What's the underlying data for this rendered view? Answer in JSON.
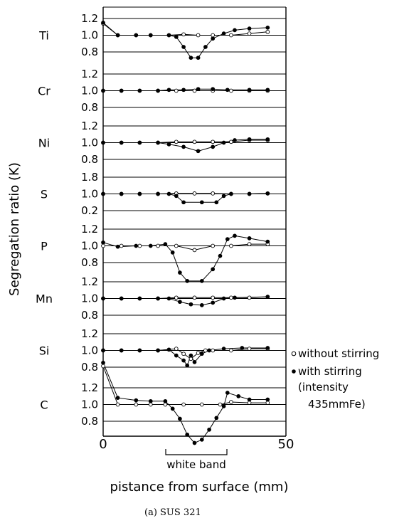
{
  "chart_data": {
    "type": "line",
    "xlabel": "pistance from surface (mm)",
    "ylabel": "Segregation ratio (K)",
    "xlim": [
      0,
      50
    ],
    "x_ticks": [
      "0",
      "50"
    ],
    "caption": "(a)  SUS 321",
    "band_label": "white band",
    "band_range": [
      17.5,
      35
    ],
    "legend": {
      "open": "without stirring",
      "filled": "with stirring",
      "filled_extra_1": "(intensity",
      "filled_extra_2": "435mmFe)"
    },
    "panels": [
      {
        "element": "Ti",
        "ticks": [
          "1.2",
          "1.0",
          "0.8"
        ],
        "tick_values": [
          1.2,
          1.0,
          0.8
        ],
        "without": [
          [
            0,
            1.14
          ],
          [
            4,
            1.0
          ],
          [
            9,
            1.0
          ],
          [
            13,
            1.0
          ],
          [
            18,
            1.0
          ],
          [
            22,
            1.01
          ],
          [
            26,
            1.0
          ],
          [
            30,
            1.0
          ],
          [
            35,
            1.0
          ],
          [
            40,
            1.02
          ],
          [
            45,
            1.04
          ]
        ],
        "with": [
          [
            0,
            1.15
          ],
          [
            4,
            1.0
          ],
          [
            9,
            1.0
          ],
          [
            13,
            1.0
          ],
          [
            18,
            1.0
          ],
          [
            20,
            0.98
          ],
          [
            22,
            0.86
          ],
          [
            24,
            0.73
          ],
          [
            26,
            0.73
          ],
          [
            28,
            0.86
          ],
          [
            30,
            0.96
          ],
          [
            33,
            1.02
          ],
          [
            36,
            1.06
          ],
          [
            40,
            1.08
          ],
          [
            45,
            1.09
          ]
        ]
      },
      {
        "element": "Cr",
        "ticks": [
          "1.2",
          "1.0",
          "0.8"
        ],
        "tick_values": [
          1.2,
          1.0,
          0.8
        ],
        "without": [
          [
            0,
            1.0
          ],
          [
            5,
            1.0
          ],
          [
            10,
            1.0
          ],
          [
            15,
            1.0
          ],
          [
            20,
            1.0
          ],
          [
            25,
            1.0
          ],
          [
            30,
            1.0
          ],
          [
            35,
            1.0
          ],
          [
            40,
            1.0
          ],
          [
            45,
            1.0
          ]
        ],
        "with": [
          [
            0,
            1.0
          ],
          [
            5,
            1.0
          ],
          [
            10,
            1.0
          ],
          [
            15,
            1.0
          ],
          [
            18,
            1.01
          ],
          [
            22,
            1.01
          ],
          [
            26,
            1.02
          ],
          [
            30,
            1.02
          ],
          [
            34,
            1.01
          ],
          [
            40,
            1.01
          ],
          [
            45,
            1.01
          ]
        ]
      },
      {
        "element": "Ni",
        "ticks": [
          "1.2",
          "1.0",
          "0.8"
        ],
        "tick_values": [
          1.2,
          1.0,
          0.8
        ],
        "without": [
          [
            0,
            1.0
          ],
          [
            5,
            1.0
          ],
          [
            10,
            1.0
          ],
          [
            15,
            1.0
          ],
          [
            20,
            1.01
          ],
          [
            25,
            1.01
          ],
          [
            30,
            1.01
          ],
          [
            35,
            1.01
          ],
          [
            40,
            1.03
          ],
          [
            45,
            1.03
          ]
        ],
        "with": [
          [
            0,
            1.0
          ],
          [
            5,
            1.0
          ],
          [
            10,
            1.0
          ],
          [
            15,
            1.0
          ],
          [
            18,
            0.98
          ],
          [
            22,
            0.95
          ],
          [
            26,
            0.9
          ],
          [
            30,
            0.95
          ],
          [
            33,
            1.0
          ],
          [
            36,
            1.03
          ],
          [
            40,
            1.04
          ],
          [
            45,
            1.04
          ]
        ]
      },
      {
        "element": "S",
        "ticks": [
          "1.8",
          "1.0",
          "0.2"
        ],
        "tick_values": [
          1.8,
          1.0,
          0.2
        ],
        "without": [
          [
            0,
            1.0
          ],
          [
            5,
            1.0
          ],
          [
            10,
            1.0
          ],
          [
            15,
            1.0
          ],
          [
            20,
            1.02
          ],
          [
            25,
            1.02
          ],
          [
            30,
            1.02
          ],
          [
            35,
            1.0
          ],
          [
            40,
            1.0
          ],
          [
            45,
            1.02
          ]
        ],
        "with": [
          [
            0,
            1.0
          ],
          [
            5,
            1.0
          ],
          [
            10,
            1.0
          ],
          [
            15,
            1.0
          ],
          [
            18,
            1.0
          ],
          [
            20,
            0.9
          ],
          [
            22,
            0.6
          ],
          [
            27,
            0.6
          ],
          [
            31,
            0.6
          ],
          [
            33,
            0.9
          ],
          [
            35,
            1.0
          ],
          [
            40,
            1.0
          ],
          [
            45,
            1.02
          ]
        ]
      },
      {
        "element": "P",
        "ticks": [
          "1.2",
          "1.0",
          "0.8"
        ],
        "tick_values": [
          1.2,
          1.0,
          0.8
        ],
        "without": [
          [
            0,
            1.0
          ],
          [
            5,
            1.0
          ],
          [
            10,
            1.0
          ],
          [
            15,
            1.0
          ],
          [
            20,
            1.0
          ],
          [
            25,
            0.95
          ],
          [
            30,
            1.0
          ],
          [
            35,
            1.0
          ],
          [
            40,
            1.02
          ],
          [
            45,
            1.02
          ]
        ],
        "with": [
          [
            0,
            1.04
          ],
          [
            4,
            0.99
          ],
          [
            9,
            1.0
          ],
          [
            13,
            1.0
          ],
          [
            17,
            1.02
          ],
          [
            19,
            0.92
          ],
          [
            21,
            0.68
          ],
          [
            23,
            0.58
          ],
          [
            27,
            0.58
          ],
          [
            30,
            0.72
          ],
          [
            32,
            0.88
          ],
          [
            34,
            1.08
          ],
          [
            36,
            1.12
          ],
          [
            40,
            1.09
          ],
          [
            45,
            1.05
          ]
        ]
      },
      {
        "element": "Mn",
        "ticks": [
          "1.2",
          "1.0",
          "0.8"
        ],
        "tick_values": [
          1.2,
          1.0,
          0.8
        ],
        "without": [
          [
            0,
            1.0
          ],
          [
            5,
            1.0
          ],
          [
            10,
            1.0
          ],
          [
            15,
            1.0
          ],
          [
            20,
            1.01
          ],
          [
            25,
            1.01
          ],
          [
            30,
            1.01
          ],
          [
            35,
            1.01
          ],
          [
            40,
            1.01
          ],
          [
            45,
            1.02
          ]
        ],
        "with": [
          [
            0,
            1.0
          ],
          [
            5,
            1.0
          ],
          [
            10,
            1.0
          ],
          [
            15,
            1.0
          ],
          [
            18,
            1.0
          ],
          [
            21,
            0.96
          ],
          [
            24,
            0.93
          ],
          [
            27,
            0.92
          ],
          [
            30,
            0.95
          ],
          [
            33,
            1.0
          ],
          [
            36,
            1.01
          ],
          [
            45,
            1.02
          ]
        ]
      },
      {
        "element": "Si",
        "ticks": [
          "1.2",
          "1.0",
          "0.8"
        ],
        "tick_values": [
          1.2,
          1.0,
          0.8
        ],
        "without": [
          [
            0,
            1.0
          ],
          [
            5,
            1.0
          ],
          [
            10,
            1.0
          ],
          [
            15,
            1.0
          ],
          [
            20,
            1.02
          ],
          [
            22,
            0.96
          ],
          [
            24,
            0.9
          ],
          [
            26,
            0.97
          ],
          [
            28,
            1.0
          ],
          [
            30,
            1.0
          ],
          [
            35,
            1.0
          ],
          [
            40,
            1.02
          ],
          [
            45,
            1.02
          ]
        ],
        "with": [
          [
            0,
            1.0
          ],
          [
            5,
            1.0
          ],
          [
            10,
            1.0
          ],
          [
            15,
            1.0
          ],
          [
            18,
            1.01
          ],
          [
            20,
            0.94
          ],
          [
            22,
            0.88
          ],
          [
            23,
            0.82
          ],
          [
            24,
            0.94
          ],
          [
            25,
            0.86
          ],
          [
            27,
            0.96
          ],
          [
            29,
            1.0
          ],
          [
            33,
            1.02
          ],
          [
            38,
            1.03
          ],
          [
            45,
            1.03
          ]
        ]
      },
      {
        "element": "C",
        "ticks": [
          "1.2",
          "1.0",
          "0.8"
        ],
        "tick_values": [
          1.2,
          1.0,
          0.8
        ],
        "without": [
          [
            0,
            1.46
          ],
          [
            4,
            1.0
          ],
          [
            9,
            1.0
          ],
          [
            13,
            1.0
          ],
          [
            17,
            1.0
          ],
          [
            22,
            1.0
          ],
          [
            27,
            1.0
          ],
          [
            32,
            1.0
          ],
          [
            35,
            1.03
          ],
          [
            40,
            1.02
          ],
          [
            45,
            1.02
          ]
        ],
        "with": [
          [
            0,
            1.5
          ],
          [
            4,
            1.08
          ],
          [
            9,
            1.05
          ],
          [
            13,
            1.04
          ],
          [
            17,
            1.04
          ],
          [
            19,
            0.95
          ],
          [
            21,
            0.83
          ],
          [
            23,
            0.64
          ],
          [
            25,
            0.54
          ],
          [
            27,
            0.58
          ],
          [
            29,
            0.7
          ],
          [
            31,
            0.84
          ],
          [
            33,
            0.98
          ],
          [
            34,
            1.14
          ],
          [
            37,
            1.1
          ],
          [
            40,
            1.06
          ],
          [
            45,
            1.06
          ]
        ]
      }
    ]
  }
}
